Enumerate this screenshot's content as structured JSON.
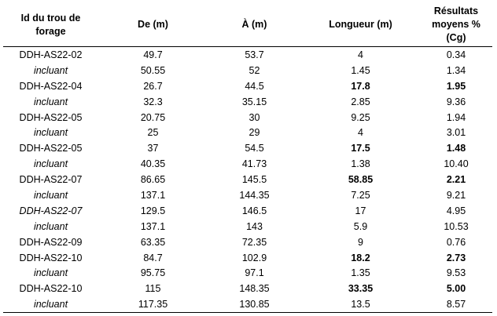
{
  "table": {
    "headers": [
      "Id du trou de forage",
      "De (m)",
      "À (m)",
      "Longueur (m)",
      "Résultats moyens % (Cg)"
    ],
    "rows": [
      {
        "id": "DDH-AS22-02",
        "de": "49.7",
        "a": "53.7",
        "longueur": "4",
        "resultat": "0.34",
        "id_italic": false,
        "longueur_bold": false,
        "resultat_bold": false
      },
      {
        "id": "incluant",
        "de": "50.55",
        "a": "52",
        "longueur": "1.45",
        "resultat": "1.34",
        "id_italic": true,
        "longueur_bold": false,
        "resultat_bold": false
      },
      {
        "id": "DDH-AS22-04",
        "de": "26.7",
        "a": "44.5",
        "longueur": "17.8",
        "resultat": "1.95",
        "id_italic": false,
        "longueur_bold": true,
        "resultat_bold": true
      },
      {
        "id": "incluant",
        "de": "32.3",
        "a": "35.15",
        "longueur": "2.85",
        "resultat": "9.36",
        "id_italic": true,
        "longueur_bold": false,
        "resultat_bold": false
      },
      {
        "id": "DDH-AS22-05",
        "de": "20.75",
        "a": "30",
        "longueur": "9.25",
        "resultat": "1.94",
        "id_italic": false,
        "longueur_bold": false,
        "resultat_bold": false
      },
      {
        "id": "incluant",
        "de": "25",
        "a": "29",
        "longueur": "4",
        "resultat": "3.01",
        "id_italic": true,
        "longueur_bold": false,
        "resultat_bold": false
      },
      {
        "id": "DDH-AS22-05",
        "de": "37",
        "a": "54.5",
        "longueur": "17.5",
        "resultat": "1.48",
        "id_italic": false,
        "longueur_bold": true,
        "resultat_bold": true
      },
      {
        "id": "incluant",
        "de": "40.35",
        "a": "41.73",
        "longueur": "1.38",
        "resultat": "10.40",
        "id_italic": true,
        "longueur_bold": false,
        "resultat_bold": false
      },
      {
        "id": "DDH-AS22-07",
        "de": "86.65",
        "a": "145.5",
        "longueur": "58.85",
        "resultat": "2.21",
        "id_italic": false,
        "longueur_bold": true,
        "resultat_bold": true
      },
      {
        "id": "incluant",
        "de": "137.1",
        "a": "144.35",
        "longueur": "7.25",
        "resultat": "9.21",
        "id_italic": true,
        "longueur_bold": false,
        "resultat_bold": false
      },
      {
        "id": "DDH-AS22-07",
        "de": "129.5",
        "a": "146.5",
        "longueur": "17",
        "resultat": "4.95",
        "id_italic": true,
        "longueur_bold": false,
        "resultat_bold": false
      },
      {
        "id": "incluant",
        "de": "137.1",
        "a": "143",
        "longueur": "5.9",
        "resultat": "10.53",
        "id_italic": true,
        "longueur_bold": false,
        "resultat_bold": false
      },
      {
        "id": "DDH-AS22-09",
        "de": "63.35",
        "a": "72.35",
        "longueur": "9",
        "resultat": "0.76",
        "id_italic": false,
        "longueur_bold": false,
        "resultat_bold": false
      },
      {
        "id": "DDH-AS22-10",
        "de": "84.7",
        "a": "102.9",
        "longueur": "18.2",
        "resultat": "2.73",
        "id_italic": false,
        "longueur_bold": true,
        "resultat_bold": true
      },
      {
        "id": "incluant",
        "de": "95.75",
        "a": "97.1",
        "longueur": "1.35",
        "resultat": "9.53",
        "id_italic": true,
        "longueur_bold": false,
        "resultat_bold": false
      },
      {
        "id": "DDH-AS22-10",
        "de": "115",
        "a": "148.35",
        "longueur": "33.35",
        "resultat": "5.00",
        "id_italic": false,
        "longueur_bold": true,
        "resultat_bold": true
      },
      {
        "id": "incluant",
        "de": "117.35",
        "a": "130.85",
        "longueur": "13.5",
        "resultat": "8.57",
        "id_italic": true,
        "longueur_bold": false,
        "resultat_bold": false
      }
    ]
  }
}
